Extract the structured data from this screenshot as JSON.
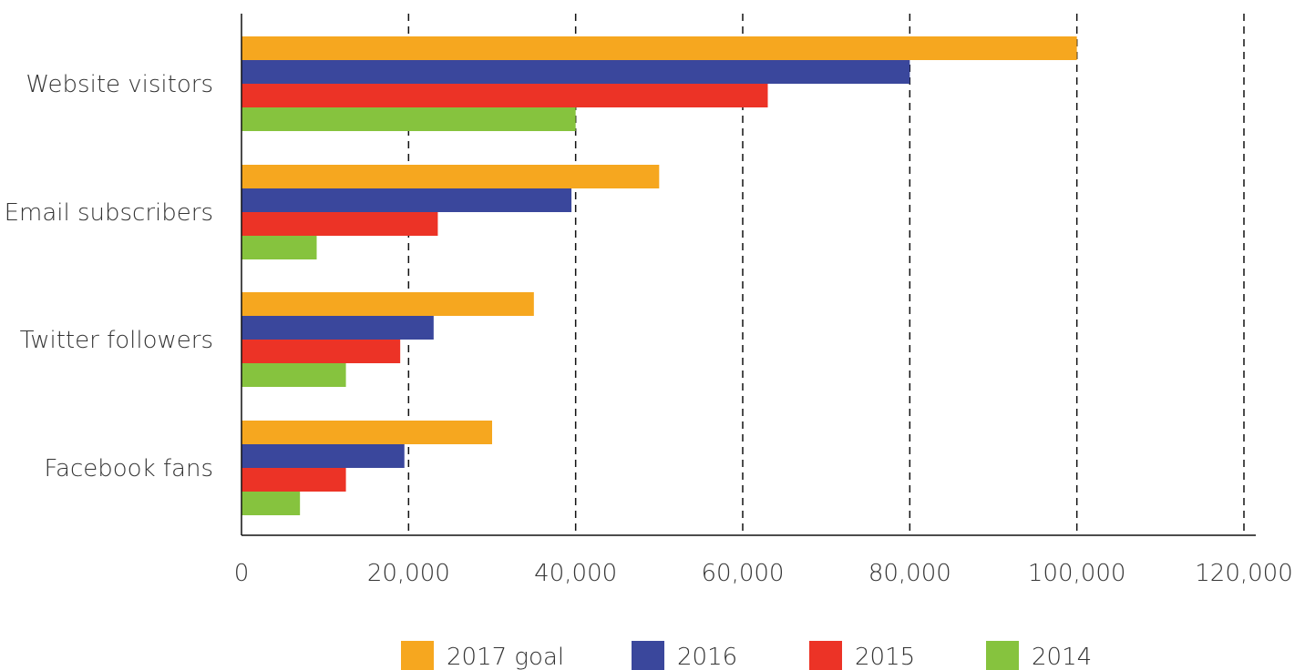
{
  "chart_data": {
    "type": "bar",
    "orientation": "horizontal",
    "title": "",
    "xlabel": "",
    "ylabel": "",
    "categories": [
      "Website visitors",
      "Email subscribers",
      "Twitter followers",
      "Facebook fans"
    ],
    "series": [
      {
        "name": "2017 goal",
        "color": "#f6a71f",
        "values": [
          100000,
          50000,
          35000,
          30000
        ]
      },
      {
        "name": "2016",
        "color": "#3a479c",
        "values": [
          80000,
          39500,
          23000,
          19500
        ]
      },
      {
        "name": "2015",
        "color": "#ec3326",
        "values": [
          63000,
          23500,
          19000,
          12500
        ]
      },
      {
        "name": "2014",
        "color": "#86c33e",
        "values": [
          40000,
          9000,
          12500,
          7000
        ]
      }
    ],
    "xlim": [
      0,
      120000
    ],
    "xticks": [
      "0",
      "20,000",
      "40,000",
      "60,000",
      "80,000",
      "100,000",
      "120,000"
    ],
    "grid": "vertical dashed",
    "legend_placement": "bottom"
  }
}
